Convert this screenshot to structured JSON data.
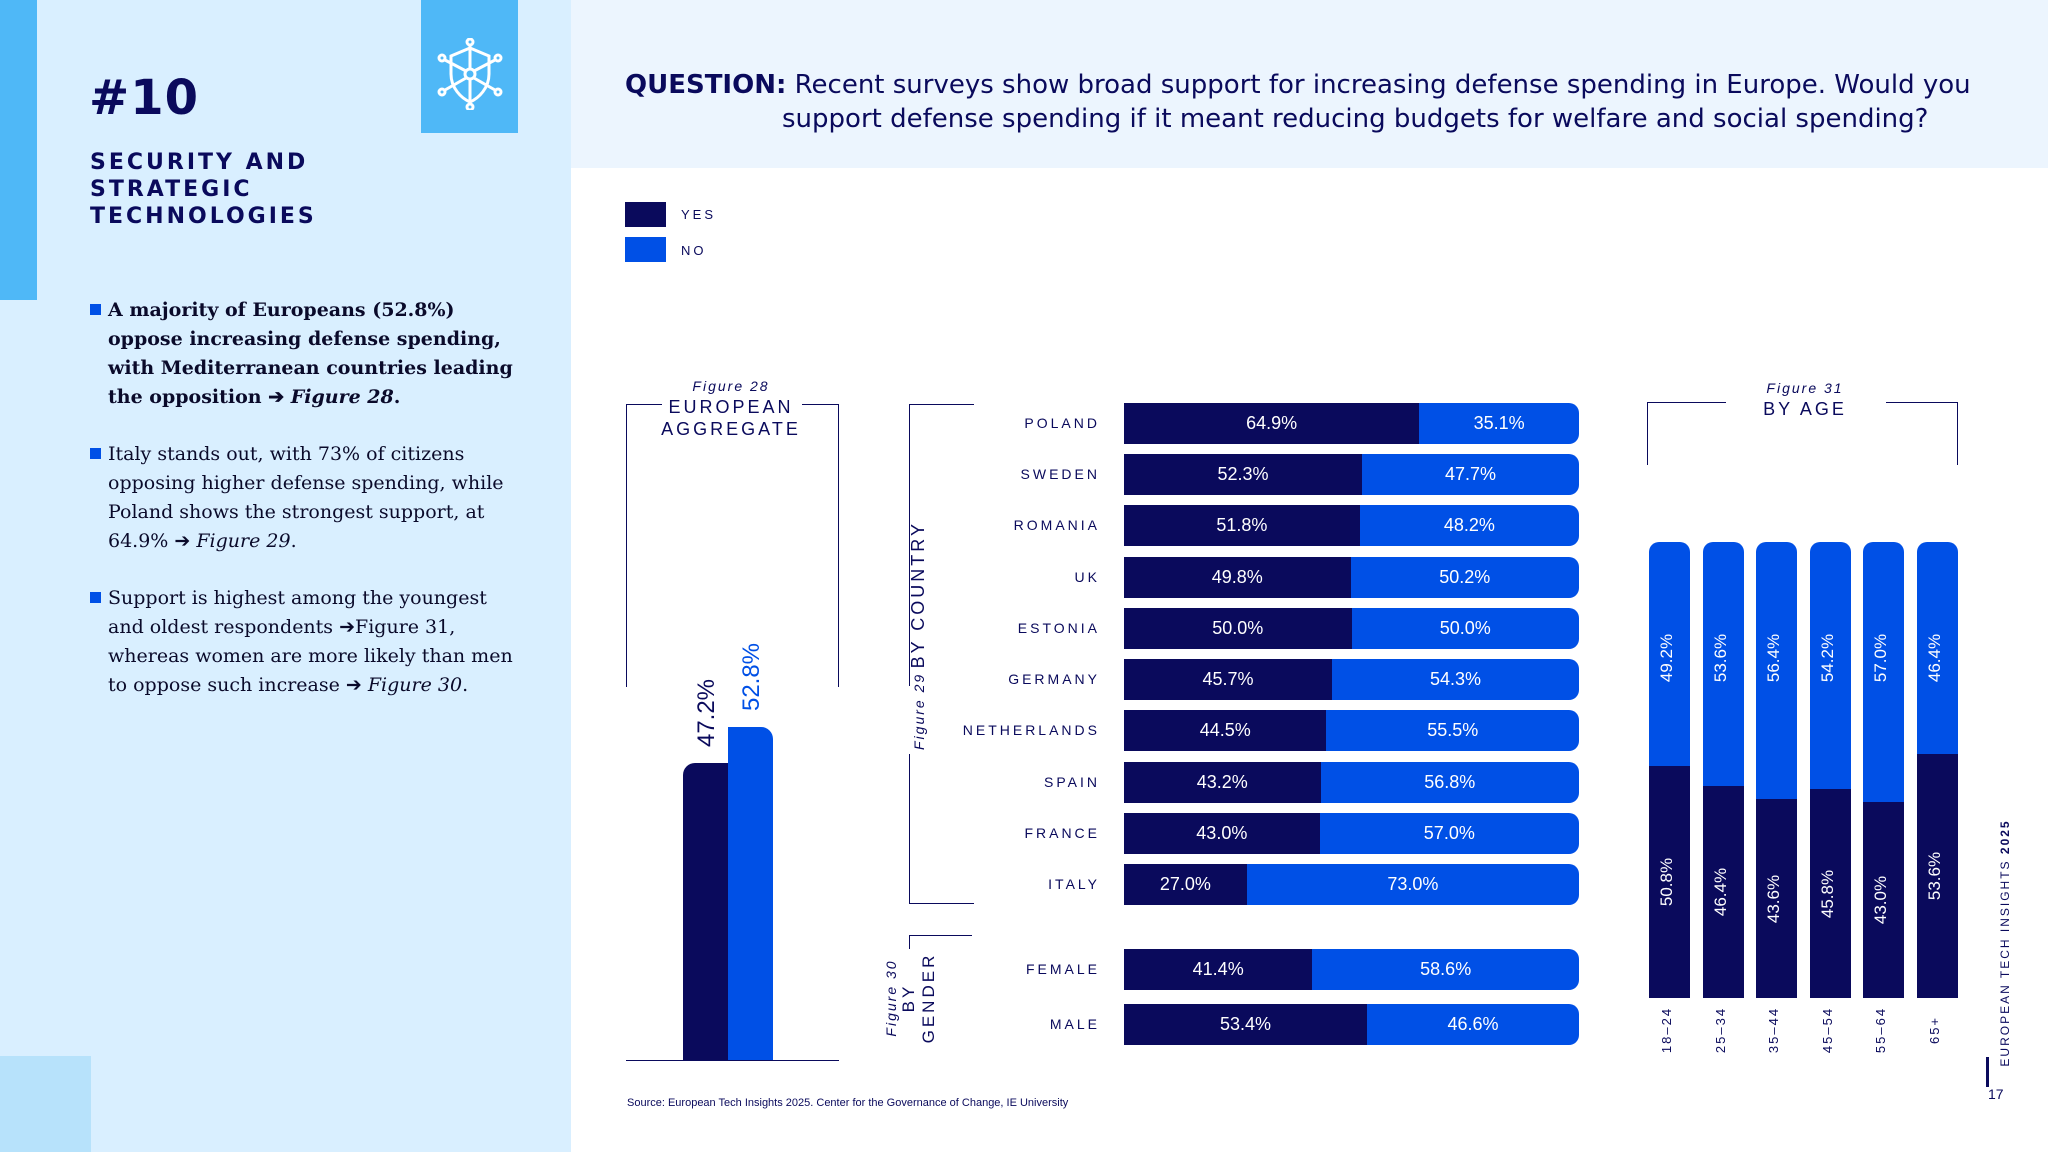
{
  "section": {
    "number": "#10",
    "title_lines": [
      "SECURITY AND",
      "STRATEGIC",
      "TECHNOLOGIES"
    ],
    "icon": "shield-network-icon"
  },
  "bullets": [
    {
      "text": "A majority of Europeans (52.8%) oppose increasing defense spending, with Mediterranean countries leading the opposition ",
      "arrow": "➔",
      "ref": "Figure 28",
      "end": "."
    },
    {
      "text": "Italy stands out, with 73% of citizens opposing higher defense spending, while Poland shows the strongest support, at 64.9% ",
      "arrow": "➔",
      "ref": "Figure 29",
      "end": "."
    },
    {
      "text": "Support is highest among the youngest and oldest respondents ",
      "arrow": "➔",
      "mid": "Figure 31, whereas women are more likely than men to oppose such increase ",
      "arrow2": "➔",
      "ref": "Figure 30",
      "end": "."
    }
  ],
  "question": {
    "label": "QUESTION:",
    "line1": "Recent surveys show broad support for increasing defense spending in Europe. Would you",
    "line2": "support defense spending if it meant reducing budgets for welfare and social spending?"
  },
  "legend": {
    "yes": "YES",
    "no": "NO"
  },
  "colors": {
    "yes": "#0a0a5c",
    "no": "#0050e6",
    "sidebar": "#d9efff",
    "accent": "#4fb8f7"
  },
  "chart_data": [
    {
      "type": "bar",
      "figure": "Figure 28",
      "title": "EUROPEAN AGGREGATE",
      "categories": [
        "YES",
        "NO"
      ],
      "values": [
        47.2,
        52.8
      ],
      "labels": [
        "47.2%",
        "52.8%"
      ]
    },
    {
      "type": "bar",
      "orientation": "horizontal-stacked",
      "figure": "Figure 29",
      "title": "BY COUNTRY",
      "categories": [
        "POLAND",
        "SWEDEN",
        "ROMANIA",
        "UK",
        "ESTONIA",
        "GERMANY",
        "NETHERLANDS",
        "SPAIN",
        "FRANCE",
        "ITALY"
      ],
      "series": [
        {
          "name": "YES",
          "values": [
            64.9,
            52.3,
            51.8,
            49.8,
            50.0,
            45.7,
            44.5,
            43.2,
            43.0,
            27.0
          ],
          "labels": [
            "64.9%",
            "52.3%",
            "51.8%",
            "49.8%",
            "50.0%",
            "45.7%",
            "44.5%",
            "43.2%",
            "43.0%",
            "27.0%"
          ]
        },
        {
          "name": "NO",
          "values": [
            35.1,
            47.7,
            48.2,
            50.2,
            50.0,
            54.3,
            55.5,
            56.8,
            57.0,
            73.0
          ],
          "labels": [
            "35.1%",
            "47.7%",
            "48.2%",
            "50.2%",
            "50.0%",
            "54.3%",
            "55.5%",
            "56.8%",
            "57.0%",
            "73.0%"
          ]
        }
      ]
    },
    {
      "type": "bar",
      "orientation": "horizontal-stacked",
      "figure": "Figure 30",
      "title": "BY GENDER",
      "categories": [
        "FEMALE",
        "MALE"
      ],
      "series": [
        {
          "name": "YES",
          "values": [
            41.4,
            53.4
          ],
          "labels": [
            "41.4%",
            "53.4%"
          ]
        },
        {
          "name": "NO",
          "values": [
            58.6,
            46.6
          ],
          "labels": [
            "58.6%",
            "46.6%"
          ]
        }
      ]
    },
    {
      "type": "bar",
      "orientation": "vertical-stacked",
      "figure": "Figure 31",
      "title": "BY AGE",
      "categories": [
        "18–24",
        "25–34",
        "35–44",
        "45–54",
        "55–64",
        "65+"
      ],
      "series": [
        {
          "name": "YES",
          "values": [
            50.8,
            46.4,
            43.6,
            45.8,
            43.0,
            53.6
          ],
          "labels": [
            "50.8%",
            "46.4%",
            "43.6%",
            "45.8%",
            "43.0%",
            "53.6%"
          ]
        },
        {
          "name": "NO",
          "values": [
            49.2,
            53.6,
            56.4,
            54.2,
            57.0,
            46.4
          ],
          "labels": [
            "49.2%",
            "53.6%",
            "56.4%",
            "54.2%",
            "57.0%",
            "46.4%"
          ]
        }
      ]
    }
  ],
  "footer": {
    "source": "Source: European Tech Insights 2025. Center for the Governance of Change, IE University",
    "page": "17",
    "brand": "EUROPEAN TECH INSIGHTS",
    "year": "2025"
  }
}
